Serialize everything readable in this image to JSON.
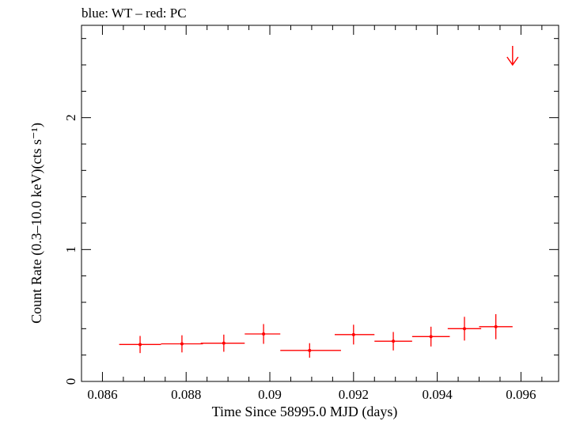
{
  "chart_data": {
    "type": "scatter",
    "title": "blue: WT – red: PC",
    "xlabel": "Time Since 58995.0 MJD (days)",
    "ylabel": "Count Rate (0.3–10.0 keV)(cts s⁻¹)",
    "xlim": [
      0.0855,
      0.0969
    ],
    "ylim": [
      0,
      2.7
    ],
    "x_ticks": [
      {
        "value": 0.086,
        "label": "0.086"
      },
      {
        "value": 0.088,
        "label": "0.088"
      },
      {
        "value": 0.09,
        "label": "0.09"
      },
      {
        "value": 0.092,
        "label": "0.092"
      },
      {
        "value": 0.094,
        "label": "0.094"
      },
      {
        "value": 0.096,
        "label": "0.096"
      }
    ],
    "y_ticks": [
      {
        "value": 0,
        "label": "0"
      },
      {
        "value": 1,
        "label": "1"
      },
      {
        "value": 2,
        "label": "2"
      }
    ],
    "grid": false,
    "series": [
      {
        "color": "#ff0000",
        "points": [
          {
            "x": 0.0869,
            "xerr_lo": 0.0005,
            "xerr_hi": 0.0005,
            "y": 0.28,
            "yerr": 0.065
          },
          {
            "x": 0.0879,
            "xerr_lo": 0.0005,
            "xerr_hi": 0.0005,
            "y": 0.285,
            "yerr": 0.065
          },
          {
            "x": 0.0889,
            "xerr_lo": 0.00055,
            "xerr_hi": 0.0005,
            "y": 0.29,
            "yerr": 0.065
          },
          {
            "x": 0.08985,
            "xerr_lo": 0.00045,
            "xerr_hi": 0.0004,
            "y": 0.36,
            "yerr": 0.075
          },
          {
            "x": 0.09095,
            "xerr_lo": 0.0007,
            "xerr_hi": 0.00075,
            "y": 0.235,
            "yerr": 0.055
          },
          {
            "x": 0.092,
            "xerr_lo": 0.00045,
            "xerr_hi": 0.0005,
            "y": 0.355,
            "yerr": 0.075
          },
          {
            "x": 0.09295,
            "xerr_lo": 0.00045,
            "xerr_hi": 0.00045,
            "y": 0.305,
            "yerr": 0.07
          },
          {
            "x": 0.09385,
            "xerr_lo": 0.00045,
            "xerr_hi": 0.00045,
            "y": 0.34,
            "yerr": 0.075
          },
          {
            "x": 0.09465,
            "xerr_lo": 0.0004,
            "xerr_hi": 0.0004,
            "y": 0.4,
            "yerr": 0.09
          },
          {
            "x": 0.0954,
            "xerr_lo": 0.0004,
            "xerr_hi": 0.0004,
            "y": 0.415,
            "yerr": 0.095
          }
        ],
        "upper_limits": [
          {
            "x": 0.0958,
            "y": 2.4
          }
        ]
      }
    ]
  }
}
